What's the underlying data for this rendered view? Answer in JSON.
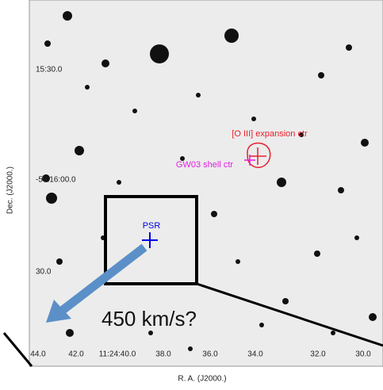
{
  "axes": {
    "y_label": "Dec. (J2000.)",
    "y_ticks": [
      "15:30.0",
      "-59:16:00.0",
      "30.0"
    ],
    "x_label": "R. A. (J2000.)",
    "x_ticks": [
      "44.0",
      "42.0",
      "11:24:40.0",
      "38.0",
      "36.0",
      "34.0",
      "32.0",
      "30.0"
    ]
  },
  "annotations": {
    "oiii": "[O III] expansion ctr",
    "gw03": "GW03 shell ctr",
    "psr": "PSR",
    "velocity": "450 km/s?"
  }
}
